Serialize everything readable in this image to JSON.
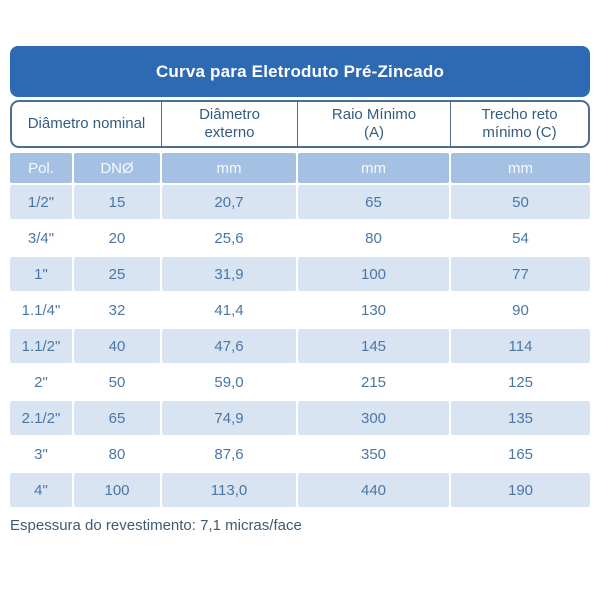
{
  "chart_data": {
    "type": "table",
    "title": "Curva para Eletroduto Pré-Zincado",
    "column_groups": [
      {
        "line1": "Diâmetro nominal",
        "line2": ""
      },
      {
        "line1": "Diâmetro",
        "line2": "externo"
      },
      {
        "line1": "Raio Mínimo",
        "line2": "(A)"
      },
      {
        "line1": "Trecho reto",
        "line2": "mínimo (C)"
      }
    ],
    "units": [
      "Pol.",
      "DNØ",
      "mm",
      "mm",
      "mm"
    ],
    "rows": [
      [
        "1/2\"",
        "15",
        "20,7",
        "65",
        "50"
      ],
      [
        "3/4\"",
        "20",
        "25,6",
        "80",
        "54"
      ],
      [
        "1\"",
        "25",
        "31,9",
        "100",
        "77"
      ],
      [
        "1.1/4\"",
        "32",
        "41,4",
        "130",
        "90"
      ],
      [
        "1.1/2\"",
        "40",
        "47,6",
        "145",
        "114"
      ],
      [
        "2\"",
        "50",
        "59,0",
        "215",
        "125"
      ],
      [
        "2.1/2\"",
        "65",
        "74,9",
        "300",
        "135"
      ],
      [
        "3\"",
        "80",
        "87,6",
        "350",
        "165"
      ],
      [
        "4\"",
        "100",
        "113,0",
        "440",
        "190"
      ]
    ],
    "footnote": "Espessura do revestimento: 7,1 micras/face"
  },
  "colors": {
    "title_bar": "#2d6ab3",
    "header_border": "#4d6d8c",
    "header_text": "#335c80",
    "units_bg": "#a4c0e3",
    "units_text": "#f7fafd",
    "row_alt_bg": "#d9e4f2",
    "data_text": "#4a76a6",
    "footnote_text": "#3f5a74"
  }
}
